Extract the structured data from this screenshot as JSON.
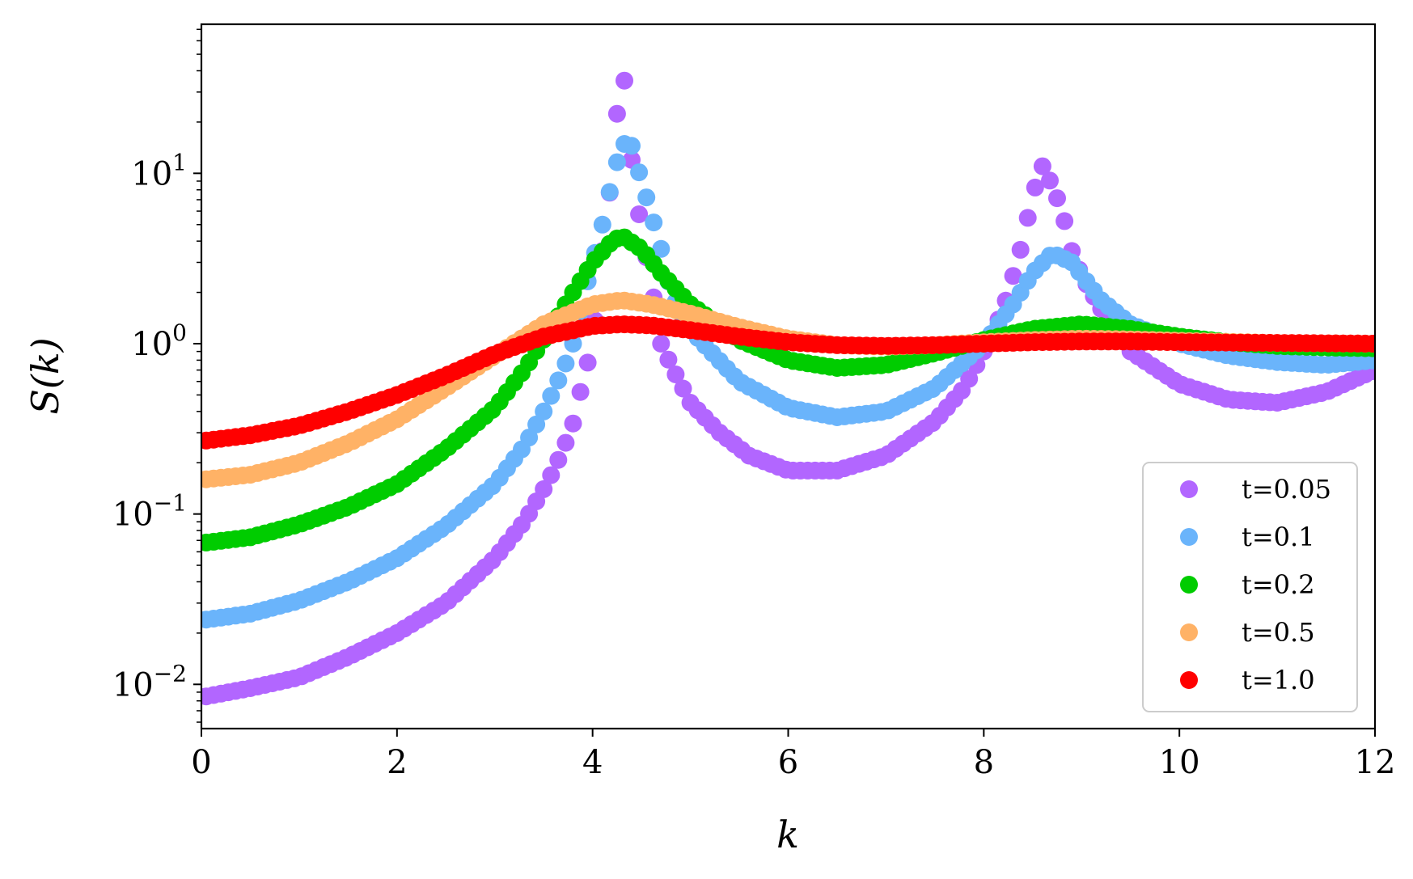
{
  "chart_data": {
    "type": "scatter",
    "title": "",
    "xlabel": "k",
    "ylabel": "S(k)",
    "xlim": [
      0,
      12
    ],
    "ylim": [
      0.0055,
      75
    ],
    "yscale": "log",
    "xticks": [
      0,
      2,
      4,
      6,
      8,
      10,
      12
    ],
    "xtick_labels": [
      "0",
      "2",
      "4",
      "6",
      "8",
      "10",
      "12"
    ],
    "yticks": [
      0.01,
      0.1,
      1,
      10
    ],
    "ytick_labels": [
      {
        "base": "10",
        "exp": "−2"
      },
      {
        "base": "10",
        "exp": "−1"
      },
      {
        "base": "10",
        "exp": "0"
      },
      {
        "base": "10",
        "exp": "1"
      }
    ],
    "grid": false,
    "legend_position": "lower-right",
    "series": [
      {
        "name": "t=0.05",
        "color": "#b266ff",
        "points": [
          [
            0.05,
            0.0085
          ],
          [
            0.5,
            0.0095
          ],
          [
            1.0,
            0.011
          ],
          [
            1.5,
            0.0145
          ],
          [
            2.0,
            0.02
          ],
          [
            2.5,
            0.03
          ],
          [
            3.0,
            0.055
          ],
          [
            3.3,
            0.09
          ],
          [
            3.5,
            0.14
          ],
          [
            3.6,
            0.18
          ],
          [
            3.7,
            0.24
          ],
          [
            3.8,
            0.34
          ],
          [
            3.9,
            0.6
          ],
          [
            4.0,
            1.0
          ],
          [
            4.1,
            3.5
          ],
          [
            4.2,
            10.0
          ],
          [
            4.3,
            50.0
          ],
          [
            4.4,
            12.0
          ],
          [
            4.5,
            4.5
          ],
          [
            4.6,
            2.3
          ],
          [
            4.7,
            1.0
          ],
          [
            4.8,
            0.75
          ],
          [
            5.0,
            0.45
          ],
          [
            5.3,
            0.3
          ],
          [
            5.6,
            0.22
          ],
          [
            6.0,
            0.18
          ],
          [
            6.5,
            0.18
          ],
          [
            7.0,
            0.22
          ],
          [
            7.5,
            0.35
          ],
          [
            7.8,
            0.55
          ],
          [
            8.0,
            0.9
          ],
          [
            8.2,
            1.6
          ],
          [
            8.3,
            2.5
          ],
          [
            8.4,
            4.0
          ],
          [
            8.5,
            7.5
          ],
          [
            8.6,
            11.0
          ],
          [
            8.7,
            8.5
          ],
          [
            8.8,
            6.0
          ],
          [
            8.9,
            3.5
          ],
          [
            9.0,
            2.5
          ],
          [
            9.2,
            1.6
          ],
          [
            9.5,
            0.9
          ],
          [
            10.0,
            0.58
          ],
          [
            10.5,
            0.47
          ],
          [
            11.0,
            0.45
          ],
          [
            11.5,
            0.52
          ],
          [
            12.0,
            0.7
          ]
        ]
      },
      {
        "name": "t=0.1",
        "color": "#6ab4fb",
        "points": [
          [
            0.05,
            0.024
          ],
          [
            0.5,
            0.026
          ],
          [
            1.0,
            0.031
          ],
          [
            1.5,
            0.04
          ],
          [
            2.0,
            0.055
          ],
          [
            2.5,
            0.085
          ],
          [
            3.0,
            0.15
          ],
          [
            3.3,
            0.25
          ],
          [
            3.5,
            0.4
          ],
          [
            3.7,
            0.7
          ],
          [
            3.8,
            1.0
          ],
          [
            3.9,
            1.8
          ],
          [
            4.0,
            3.0
          ],
          [
            4.1,
            5.0
          ],
          [
            4.2,
            9.0
          ],
          [
            4.3,
            15.0
          ],
          [
            4.4,
            14.5
          ],
          [
            4.5,
            9.0
          ],
          [
            4.6,
            5.8
          ],
          [
            4.7,
            3.6
          ],
          [
            4.8,
            2.0
          ],
          [
            5.0,
            1.2
          ],
          [
            5.5,
            0.6
          ],
          [
            6.0,
            0.42
          ],
          [
            6.5,
            0.37
          ],
          [
            7.0,
            0.4
          ],
          [
            7.5,
            0.55
          ],
          [
            8.0,
            1.0
          ],
          [
            8.3,
            1.7
          ],
          [
            8.5,
            2.6
          ],
          [
            8.7,
            3.4
          ],
          [
            8.9,
            3.0
          ],
          [
            9.2,
            1.8
          ],
          [
            9.5,
            1.3
          ],
          [
            10.0,
            1.0
          ],
          [
            10.5,
            0.85
          ],
          [
            11.0,
            0.78
          ],
          [
            11.5,
            0.75
          ],
          [
            12.0,
            0.8
          ]
        ]
      },
      {
        "name": "t=0.2",
        "color": "#00cc00",
        "points": [
          [
            0.05,
            0.068
          ],
          [
            0.5,
            0.073
          ],
          [
            1.0,
            0.087
          ],
          [
            1.5,
            0.11
          ],
          [
            2.0,
            0.15
          ],
          [
            2.5,
            0.24
          ],
          [
            3.0,
            0.42
          ],
          [
            3.3,
            0.7
          ],
          [
            3.6,
            1.3
          ],
          [
            3.8,
            2.0
          ],
          [
            4.0,
            3.0
          ],
          [
            4.2,
            4.0
          ],
          [
            4.3,
            4.3
          ],
          [
            4.5,
            3.6
          ],
          [
            4.7,
            2.6
          ],
          [
            5.0,
            1.7
          ],
          [
            5.5,
            1.05
          ],
          [
            6.0,
            0.8
          ],
          [
            6.5,
            0.72
          ],
          [
            7.0,
            0.75
          ],
          [
            7.5,
            0.88
          ],
          [
            8.0,
            1.05
          ],
          [
            8.5,
            1.22
          ],
          [
            9.0,
            1.3
          ],
          [
            9.5,
            1.22
          ],
          [
            10.0,
            1.1
          ],
          [
            10.5,
            1.02
          ],
          [
            11.0,
            0.97
          ],
          [
            11.5,
            0.95
          ],
          [
            12.0,
            0.94
          ]
        ]
      },
      {
        "name": "t=0.5",
        "color": "#ffb266",
        "points": [
          [
            0.05,
            0.16
          ],
          [
            0.5,
            0.17
          ],
          [
            1.0,
            0.2
          ],
          [
            1.5,
            0.26
          ],
          [
            2.0,
            0.36
          ],
          [
            2.5,
            0.55
          ],
          [
            3.0,
            0.85
          ],
          [
            3.5,
            1.3
          ],
          [
            4.0,
            1.7
          ],
          [
            4.3,
            1.8
          ],
          [
            4.6,
            1.7
          ],
          [
            5.0,
            1.5
          ],
          [
            5.5,
            1.25
          ],
          [
            6.0,
            1.07
          ],
          [
            6.5,
            0.98
          ],
          [
            7.0,
            0.96
          ],
          [
            7.5,
            0.98
          ],
          [
            8.0,
            1.02
          ],
          [
            8.5,
            1.05
          ],
          [
            9.0,
            1.07
          ],
          [
            9.5,
            1.06
          ],
          [
            10.0,
            1.04
          ],
          [
            11.0,
            1.01
          ],
          [
            12.0,
            1.0
          ]
        ]
      },
      {
        "name": "t=1.0",
        "color": "#ff0000",
        "points": [
          [
            0.05,
            0.27
          ],
          [
            0.5,
            0.29
          ],
          [
            1.0,
            0.33
          ],
          [
            1.5,
            0.4
          ],
          [
            2.0,
            0.5
          ],
          [
            2.5,
            0.65
          ],
          [
            3.0,
            0.87
          ],
          [
            3.5,
            1.1
          ],
          [
            4.0,
            1.27
          ],
          [
            4.3,
            1.3
          ],
          [
            4.6,
            1.28
          ],
          [
            5.0,
            1.2
          ],
          [
            5.5,
            1.1
          ],
          [
            6.0,
            1.02
          ],
          [
            6.5,
            0.98
          ],
          [
            7.0,
            0.97
          ],
          [
            7.5,
            0.98
          ],
          [
            8.0,
            1.0
          ],
          [
            8.5,
            1.02
          ],
          [
            9.0,
            1.03
          ],
          [
            9.5,
            1.03
          ],
          [
            10.0,
            1.02
          ],
          [
            11.0,
            1.01
          ],
          [
            12.0,
            1.0
          ]
        ]
      }
    ]
  }
}
